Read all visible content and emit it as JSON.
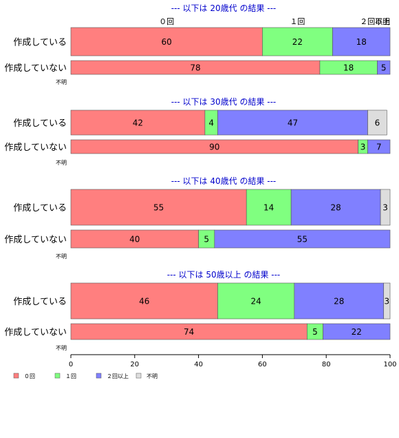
{
  "chart_data": {
    "type": "bar",
    "orientation": "horizontal",
    "stacked": true,
    "series_names": [
      "０回",
      "１回",
      "２回以上",
      "不明"
    ],
    "colors": [
      "#ff7f7f",
      "#80ff80",
      "#8080ff",
      "#dddddd"
    ],
    "xlim": [
      0,
      100
    ],
    "xticks": [
      "0",
      "20",
      "40",
      "60",
      "80",
      "100"
    ],
    "na_label": "不明",
    "groups": [
      {
        "title": "--- 以下は 20歳代 の結果 ---",
        "rows": [
          {
            "label": "作成している",
            "values": [
              60,
              22,
              18,
              0
            ]
          },
          {
            "label": "作成していない",
            "values": [
              78,
              18,
              5,
              0
            ]
          }
        ]
      },
      {
        "title": "--- 以下は 30歳代 の結果 ---",
        "rows": [
          {
            "label": "作成している",
            "values": [
              42,
              4,
              47,
              6
            ]
          },
          {
            "label": "作成していない",
            "values": [
              90,
              3,
              7,
              0
            ]
          }
        ]
      },
      {
        "title": "--- 以下は 40歳代 の結果 ---",
        "rows": [
          {
            "label": "作成している",
            "values": [
              55,
              14,
              28,
              3
            ]
          },
          {
            "label": "作成していない",
            "values": [
              40,
              5,
              55,
              0
            ]
          }
        ]
      },
      {
        "title": "--- 以下は 50歳以上 の結果 ---",
        "rows": [
          {
            "label": "作成している",
            "values": [
              46,
              24,
              28,
              3
            ]
          },
          {
            "label": "作成していない",
            "values": [
              74,
              5,
              22,
              0
            ]
          }
        ]
      }
    ],
    "legend_position": "bottom-left"
  }
}
